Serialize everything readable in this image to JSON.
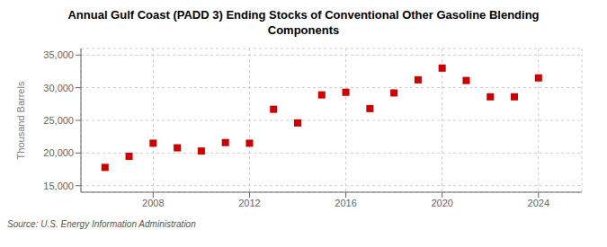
{
  "chart_data": {
    "type": "scatter",
    "title": "Annual Gulf Coast (PADD 3) Ending Stocks of Conventional Other Gasoline Blending\nComponents",
    "ylabel": "Thousand Barrels",
    "annotations": [
      "Source: U.S. Energy Information Administration"
    ],
    "x": [
      2006,
      2007,
      2008,
      2009,
      2010,
      2011,
      2012,
      2013,
      2014,
      2015,
      2016,
      2017,
      2018,
      2019,
      2020,
      2021,
      2022,
      2023,
      2024
    ],
    "values": [
      17800,
      19500,
      21500,
      20800,
      20300,
      21600,
      21500,
      26700,
      24600,
      28900,
      29300,
      26800,
      29200,
      31200,
      33000,
      31100,
      28600,
      28600,
      31500
    ],
    "color": "#cc0000",
    "marker": "square",
    "xlim": [
      2005,
      2025.8
    ],
    "xticks": [
      2008,
      2012,
      2016,
      2020,
      2024
    ],
    "ylim": [
      14000,
      36000
    ],
    "yticks": [
      {
        "value": 15000,
        "label": "15,000"
      },
      {
        "value": 20000,
        "label": "20,000"
      },
      {
        "value": 25000,
        "label": "25,000"
      },
      {
        "value": 30000,
        "label": "30,000"
      },
      {
        "value": 35000,
        "label": "35,000"
      }
    ],
    "grid": true
  }
}
